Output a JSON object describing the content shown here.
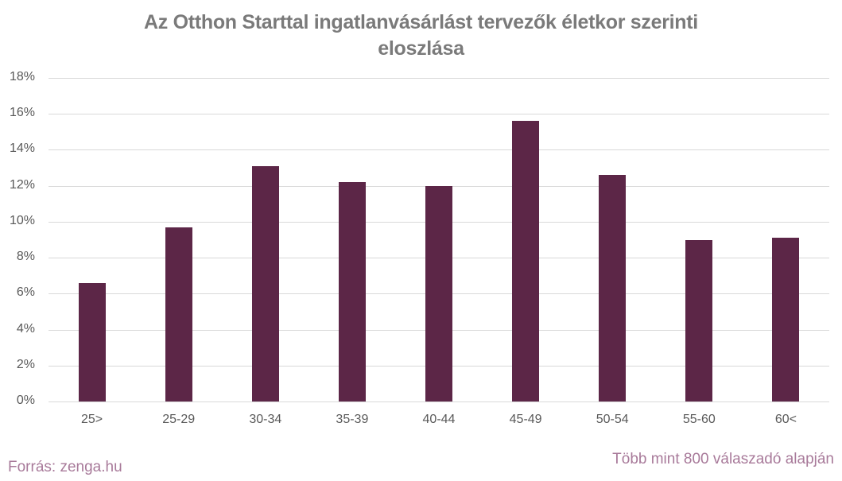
{
  "chart_data": {
    "type": "bar",
    "title": "Az Otthon Starttal ingatlanvásárlást tervezők életkor szerinti eloszlása",
    "title_lines": [
      "Az Otthon Starttal ingatlanvásárlást tervezők életkor szerinti",
      "eloszlása"
    ],
    "categories": [
      "25>",
      "25-29",
      "30-34",
      "35-39",
      "40-44",
      "45-49",
      "50-54",
      "55-60",
      "60<"
    ],
    "values": [
      6.6,
      9.7,
      13.1,
      12.2,
      12.0,
      15.6,
      12.6,
      9.0,
      9.1
    ],
    "unit": "%",
    "xlabel": "",
    "ylabel": "",
    "ylim": [
      0,
      18
    ],
    "yticks": [
      "0%",
      "2%",
      "4%",
      "6%",
      "8%",
      "10%",
      "12%",
      "14%",
      "16%",
      "18%"
    ],
    "grid": true,
    "legend": "none",
    "bar_color": "#5c2647"
  },
  "footer": {
    "source": "Forrás: zenga.hu",
    "note": "Több mint 800 válaszadó alapján"
  },
  "colors": {
    "bar": "#5c2647",
    "title": "#7a7a7a",
    "footer": "#a87a9a",
    "grid": "#d9d9d9"
  }
}
